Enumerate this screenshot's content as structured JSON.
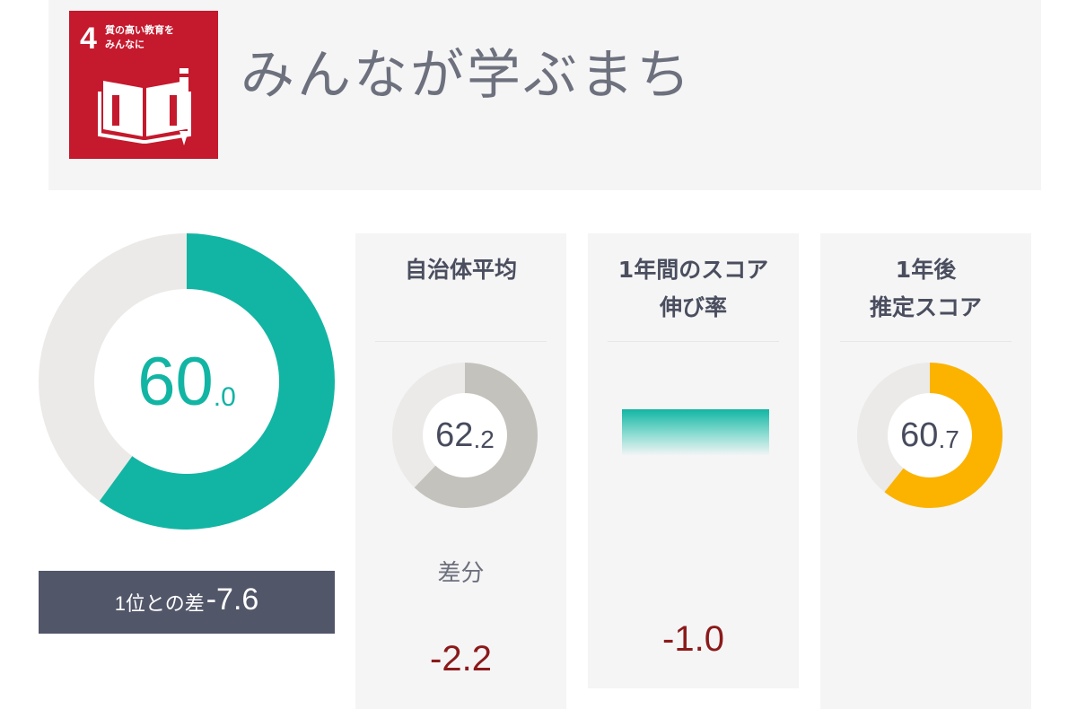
{
  "header": {
    "sdg_badge": {
      "number": "4",
      "text_lines": [
        "質の高い教育を",
        "みんなに"
      ],
      "color": "#c5192d"
    },
    "title": "みんなが学ぶまち"
  },
  "main_score": {
    "integer": "60",
    "decimal": ".0",
    "value": 60.0,
    "ring_fraction": 0.6,
    "color": "#12b5a3",
    "track_color": "#ebeae8"
  },
  "rank_diff": {
    "label": "1位との差",
    "value": "-7.6"
  },
  "panels": {
    "municipal_average": {
      "title_lines": [
        "自治体平均"
      ],
      "score_integer": "62",
      "score_decimal": ".2",
      "value": 62.2,
      "ring_fraction": 0.622,
      "ring_color": "#c4c2bc",
      "diff_label": "差分",
      "diff_value": "-2.2"
    },
    "growth_rate": {
      "title_lines": [
        "1年間のスコア",
        "伸び率"
      ],
      "value": "-1.0",
      "bar_color": "#12b5a3"
    },
    "estimate_next_year": {
      "title_lines": [
        "1年後",
        "推定スコア"
      ],
      "score_integer": "60",
      "score_decimal": ".7",
      "value": 60.7,
      "ring_fraction": 0.607,
      "ring_color": "#fbb300"
    }
  },
  "colors": {
    "negative": "#8b1a1a",
    "panel_bg": "#f5f5f6",
    "rank_bar_bg": "#525669"
  }
}
